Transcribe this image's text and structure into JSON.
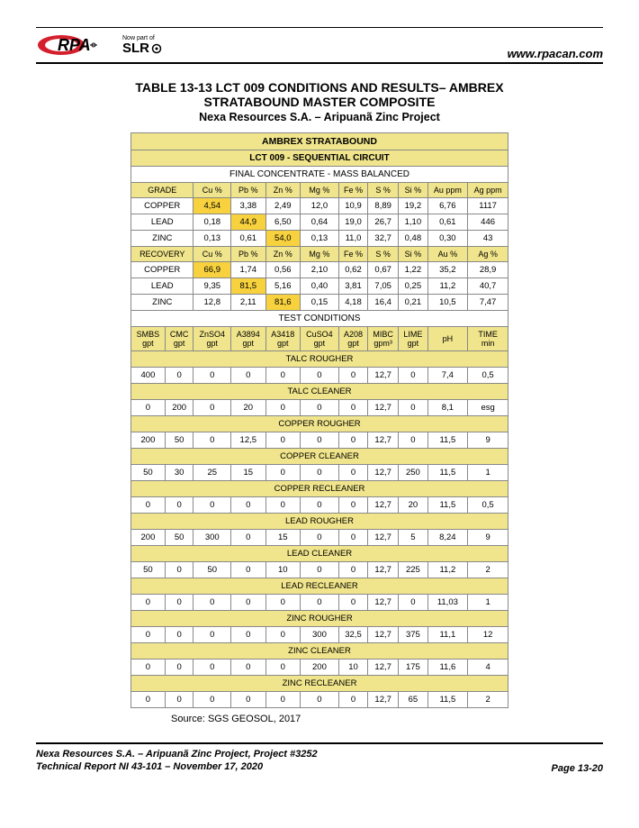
{
  "header": {
    "logo_text": "RPA",
    "logo_sub1": "Now part of",
    "logo_sub2": "SLR",
    "url": "www.rpacan.com"
  },
  "title": {
    "line1": "TABLE 13-13   LCT 009 CONDITIONS AND RESULTS– AMBREX",
    "line2": "STRATABOUND MASTER COMPOSITE",
    "line3": "Nexa Resources S.A. – Aripuanã Zinc Project"
  },
  "table": {
    "banner1": "AMBREX STRATABOUND",
    "banner2": "LCT 009 - SEQUENTIAL CIRCUIT",
    "section_final": "FINAL CONCENTRATE - MASS BALANCED",
    "grade_hdr": [
      "GRADE",
      "Cu %",
      "Pb %",
      "Zn %",
      "Mg %",
      "Fe %",
      "S %",
      "Si %",
      "Au ppm",
      "Ag ppm"
    ],
    "grade_rows": [
      {
        "label": "COPPER",
        "vals": [
          "4,54",
          "3,38",
          "2,49",
          "12,0",
          "10,9",
          "8,89",
          "19,2",
          "6,76",
          "1117"
        ],
        "hl": [
          0
        ]
      },
      {
        "label": "LEAD",
        "vals": [
          "0,18",
          "44,9",
          "6,50",
          "0,64",
          "19,0",
          "26,7",
          "1,10",
          "0,61",
          "446"
        ],
        "hl": [
          1
        ]
      },
      {
        "label": "ZINC",
        "vals": [
          "0,13",
          "0,61",
          "54,0",
          "0,13",
          "11,0",
          "32,7",
          "0,48",
          "0,30",
          "43"
        ],
        "hl": [
          2
        ]
      }
    ],
    "recovery_hdr": [
      "RECOVERY",
      "Cu %",
      "Pb %",
      "Zn %",
      "Mg %",
      "Fe %",
      "S %",
      "Si %",
      "Au %",
      "Ag %"
    ],
    "recovery_rows": [
      {
        "label": "COPPER",
        "vals": [
          "66,9",
          "1,74",
          "0,56",
          "2,10",
          "0,62",
          "0,67",
          "1,22",
          "35,2",
          "28,9"
        ],
        "hl": [
          0
        ]
      },
      {
        "label": "LEAD",
        "vals": [
          "9,35",
          "81,5",
          "5,16",
          "0,40",
          "3,81",
          "7,05",
          "0,25",
          "11,2",
          "40,7"
        ],
        "hl": [
          1
        ]
      },
      {
        "label": "ZINC",
        "vals": [
          "12,8",
          "2,11",
          "81,6",
          "0,15",
          "4,18",
          "16,4",
          "0,21",
          "10,5",
          "7,47"
        ],
        "hl": [
          2
        ]
      }
    ],
    "section_test": "TEST CONDITIONS",
    "cond_hdr": [
      "SMBS gpt",
      "CMC gpt",
      "ZnSO4 gpt",
      "A3894 gpt",
      "A3418 gpt",
      "CuSO4 gpt",
      "A208 gpt",
      "MIBC gpm³",
      "LIME gpt",
      "pH",
      "TIME min"
    ],
    "stages": [
      {
        "name": "TALC ROUGHER",
        "vals": [
          "400",
          "0",
          "0",
          "0",
          "0",
          "0",
          "0",
          "12,7",
          "0",
          "7,4",
          "0,5"
        ]
      },
      {
        "name": "TALC CLEANER",
        "vals": [
          "0",
          "200",
          "0",
          "20",
          "0",
          "0",
          "0",
          "12,7",
          "0",
          "8,1",
          "esg"
        ]
      },
      {
        "name": "COPPER ROUGHER",
        "vals": [
          "200",
          "50",
          "0",
          "12,5",
          "0",
          "0",
          "0",
          "12,7",
          "0",
          "11,5",
          "9"
        ]
      },
      {
        "name": "COPPER CLEANER",
        "vals": [
          "50",
          "30",
          "25",
          "15",
          "0",
          "0",
          "0",
          "12,7",
          "250",
          "11,5",
          "1"
        ]
      },
      {
        "name": "COPPER RECLEANER",
        "vals": [
          "0",
          "0",
          "0",
          "0",
          "0",
          "0",
          "0",
          "12,7",
          "20",
          "11,5",
          "0,5"
        ]
      },
      {
        "name": "LEAD ROUGHER",
        "vals": [
          "200",
          "50",
          "300",
          "0",
          "15",
          "0",
          "0",
          "12,7",
          "5",
          "8,24",
          "9"
        ]
      },
      {
        "name": "LEAD CLEANER",
        "vals": [
          "50",
          "0",
          "50",
          "0",
          "10",
          "0",
          "0",
          "12,7",
          "225",
          "11,2",
          "2"
        ]
      },
      {
        "name": "LEAD RECLEANER",
        "vals": [
          "0",
          "0",
          "0",
          "0",
          "0",
          "0",
          "0",
          "12,7",
          "0",
          "11,03",
          "1"
        ]
      },
      {
        "name": "ZINC ROUGHER",
        "vals": [
          "0",
          "0",
          "0",
          "0",
          "0",
          "300",
          "32,5",
          "12,7",
          "375",
          "11,1",
          "12"
        ]
      },
      {
        "name": "ZINC CLEANER",
        "vals": [
          "0",
          "0",
          "0",
          "0",
          "0",
          "200",
          "10",
          "12,7",
          "175",
          "11,6",
          "4"
        ]
      },
      {
        "name": "ZINC RECLEANER",
        "vals": [
          "0",
          "0",
          "0",
          "0",
          "0",
          "0",
          "0",
          "12,7",
          "65",
          "11,5",
          "2"
        ]
      }
    ]
  },
  "source": "Source: SGS GEOSOL, 2017",
  "footer": {
    "line1": "Nexa Resources S.A. – Aripuanã Zinc Project, Project #3252",
    "line2": "Technical Report NI 43-101 – November 17, 2020",
    "page": "Page 13-20"
  },
  "colors": {
    "yellow_bg": "#f0e58c",
    "highlight": "#f7d23e",
    "white": "#ffffff",
    "rpa_red": "#d4202c"
  }
}
